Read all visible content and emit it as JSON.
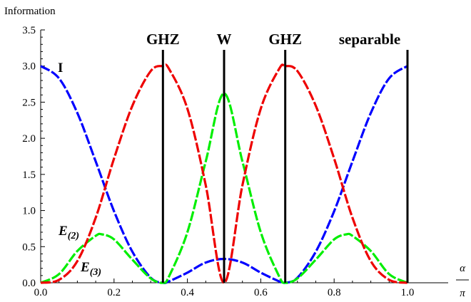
{
  "chart_data": {
    "type": "line",
    "ylabel": "Information",
    "xlabel_numerator": "α",
    "xlabel_denominator": "π",
    "xlim": [
      0,
      1
    ],
    "ylim": [
      0,
      3.5
    ],
    "xticks": [
      "0.0",
      "0.2",
      "0.4",
      "0.6",
      "0.8",
      "1.0"
    ],
    "yticks": [
      "0.0",
      "0.5",
      "1.0",
      "1.5",
      "2.0",
      "2.5",
      "3.0",
      "3.5"
    ],
    "grid": false,
    "vertical_markers": [
      {
        "x": 0.3333,
        "label": "GHZ"
      },
      {
        "x": 0.5,
        "label": "W"
      },
      {
        "x": 0.6667,
        "label": "GHZ"
      },
      {
        "x": 1.0,
        "label": "separable"
      }
    ],
    "series": [
      {
        "name": "I",
        "color": "#0000ff",
        "x": [
          0,
          0.05,
          0.1,
          0.15,
          0.2,
          0.25,
          0.3,
          0.3333,
          0.35,
          0.4,
          0.45,
          0.5,
          0.55,
          0.6,
          0.65,
          0.6667,
          0.7,
          0.75,
          0.8,
          0.85,
          0.9,
          0.95,
          1.0
        ],
        "values": [
          3.0,
          2.83,
          2.35,
          1.68,
          0.99,
          0.43,
          0.07,
          0.0,
          0.02,
          0.14,
          0.28,
          0.33,
          0.28,
          0.14,
          0.02,
          0.0,
          0.07,
          0.43,
          0.99,
          1.68,
          2.35,
          2.83,
          3.0
        ]
      },
      {
        "name": "E(2)",
        "label_main": "E",
        "label_sub": "(2)",
        "color": "#00ee00",
        "x": [
          0,
          0.05,
          0.1,
          0.15,
          0.1667,
          0.2,
          0.25,
          0.3,
          0.3333,
          0.35,
          0.4,
          0.45,
          0.5,
          0.55,
          0.6,
          0.65,
          0.6667,
          0.7,
          0.75,
          0.8,
          0.8333,
          0.85,
          0.9,
          0.95,
          1.0
        ],
        "values": [
          0.0,
          0.12,
          0.44,
          0.65,
          0.67,
          0.6,
          0.32,
          0.06,
          0.0,
          0.09,
          0.7,
          1.68,
          2.62,
          1.68,
          0.7,
          0.09,
          0.0,
          0.06,
          0.32,
          0.6,
          0.67,
          0.65,
          0.44,
          0.12,
          0.0
        ]
      },
      {
        "name": "E(3)",
        "label_main": "E",
        "label_sub": "(3)",
        "color": "#ee0000",
        "x": [
          0,
          0.05,
          0.1,
          0.15,
          0.2,
          0.25,
          0.3,
          0.3333,
          0.35,
          0.4,
          0.45,
          0.5,
          0.55,
          0.6,
          0.65,
          0.6667,
          0.7,
          0.75,
          0.8,
          0.85,
          0.9,
          0.95,
          1.0
        ],
        "values": [
          0.0,
          0.04,
          0.3,
          0.9,
          1.72,
          2.45,
          2.93,
          3.0,
          2.96,
          2.41,
          1.35,
          0.0,
          1.35,
          2.41,
          2.96,
          3.0,
          2.93,
          2.45,
          1.72,
          0.9,
          0.3,
          0.04,
          0.0
        ]
      }
    ]
  }
}
